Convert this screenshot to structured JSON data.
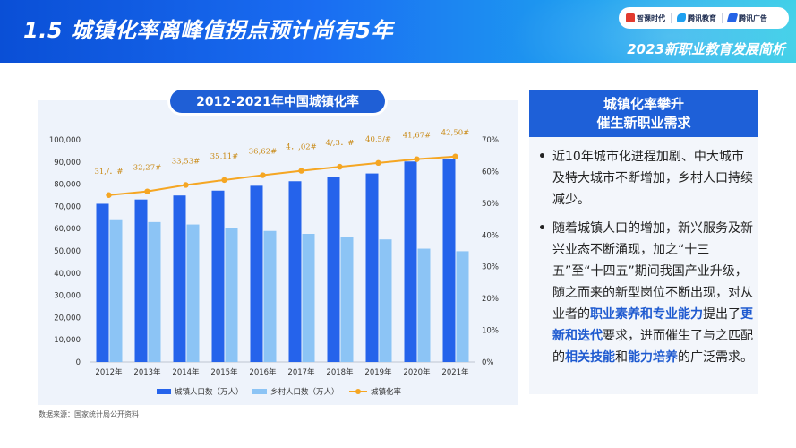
{
  "header": {
    "title": "1.5  城镇化率离峰值拐点预计尚有5年",
    "subtitle": "2023新职业教育发展简析",
    "logos": [
      {
        "name": "智课时代",
        "color": "#e23a2e"
      },
      {
        "name": "腾讯教育",
        "color": "#1ea0f0"
      },
      {
        "name": "腾讯广告",
        "color": "#2463e6"
      }
    ]
  },
  "chart_title": "2012-2021年中国城镇化率",
  "source": "数据来源：国家统计局公开资料",
  "colors": {
    "urban": "#2563eb",
    "rural": "#8cc4f5",
    "rate": "#f5a623"
  },
  "chart_data": {
    "type": "bar",
    "categories": [
      "2012年",
      "2013年",
      "2014年",
      "2015年",
      "2016年",
      "2017年",
      "2018年",
      "2019年",
      "2020年",
      "2021年"
    ],
    "series": [
      {
        "name": "城镇人口数（万人）",
        "type": "bar",
        "axis": "left",
        "values": [
          71182,
          73111,
          74916,
          77116,
          79298,
          81347,
          83137,
          84843,
          90220,
          91425
        ]
      },
      {
        "name": "乡村人口数（万人）",
        "type": "bar",
        "axis": "left",
        "values": [
          64222,
          62961,
          61866,
          60346,
          58973,
          57661,
          56401,
          55162,
          50992,
          49835
        ]
      },
      {
        "name": "城镇化率",
        "type": "line",
        "axis": "right",
        "values": [
          52.57,
          53.73,
          55.75,
          57.33,
          58.84,
          60.24,
          61.5,
          62.71,
          63.89,
          64.72
        ]
      }
    ],
    "rate_labels": [
      "31,/．#",
      "32,27#",
      "33,53#",
      "35,11#",
      "36,62#",
      "4．,02#",
      "4/,3．#",
      "40,5/#",
      "41,67#",
      "42,50#"
    ],
    "y_left": {
      "min": 0,
      "max": 100000,
      "ticks": [
        "0",
        "10,000",
        "20,000",
        "30,000",
        "40,000",
        "50,000",
        "60,000",
        "70,000",
        "80,000",
        "90,000",
        "100,000"
      ]
    },
    "y_right": {
      "min": 0,
      "max": 70,
      "ticks": [
        "0%",
        "10%",
        "20%",
        "30%",
        "40%",
        "50%",
        "60%",
        "70%"
      ]
    },
    "legend_position": "bottom",
    "grid": false
  },
  "side": {
    "title_line1": "城镇化率攀升",
    "title_line2": "催生新职业需求",
    "bullet_symbol": "•",
    "bullet1": "近10年城市化进程加剧、中大城市及特大城市不断增加，乡村人口持续减少。",
    "b2_p1": "随着城镇人口的增加，新兴服务及新兴业态不断涌现，加之“十三五”至“十四五”期间我国产业升级，随之而来的新型岗位不断出现，对从业者的",
    "b2_h1": "职业素养和专业能力",
    "b2_p2": "提出了",
    "b2_h2": "更新和迭代",
    "b2_p3": "要求，进而催生了与之匹配的",
    "b2_h3": "相关技能",
    "b2_p4": "和",
    "b2_h4": "能力培养",
    "b2_p5": "的广泛需求。"
  }
}
